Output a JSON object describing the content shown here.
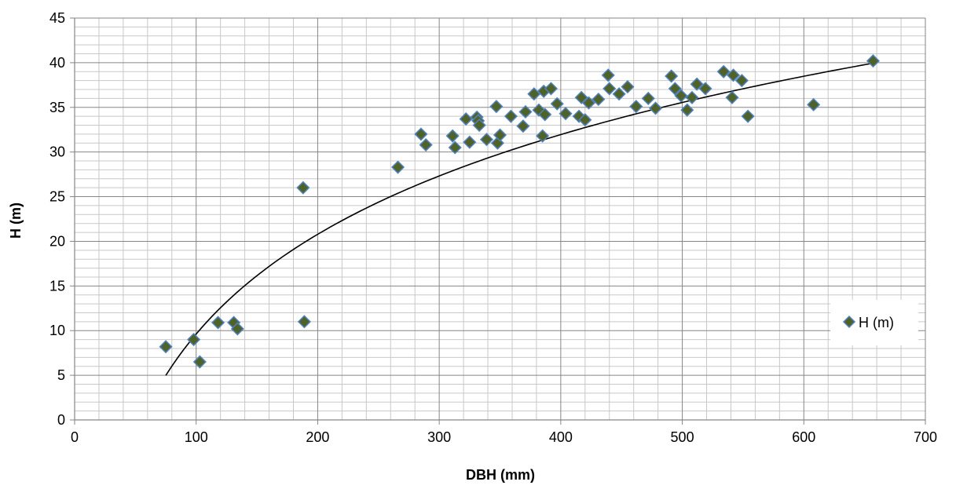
{
  "chart_data": {
    "type": "scatter",
    "xlabel": "DBH (mm)",
    "ylabel": "H (m)",
    "xlim": [
      0,
      700
    ],
    "ylim": [
      0,
      45
    ],
    "x_major_ticks": [
      0,
      100,
      200,
      300,
      400,
      500,
      600,
      700
    ],
    "y_major_ticks": [
      0,
      5,
      10,
      15,
      20,
      25,
      30,
      35,
      40,
      45
    ],
    "x_minor_step": 20,
    "y_minor_step": 1,
    "grid": true,
    "legend_position": "right",
    "colors": {
      "marker_fill": "#4f6228",
      "marker_stroke": "#4f81bd",
      "trendline": "#000000",
      "major_grid": "#868686",
      "minor_grid": "#c8c8c8"
    },
    "series": [
      {
        "name": "H (m)",
        "marker": "diamond",
        "points": [
          [
            75,
            8.2
          ],
          [
            98,
            9.0
          ],
          [
            103,
            6.5
          ],
          [
            118,
            10.9
          ],
          [
            131,
            10.9
          ],
          [
            134,
            10.2
          ],
          [
            188,
            26.0
          ],
          [
            189,
            11.0
          ],
          [
            266,
            28.3
          ],
          [
            285,
            32.0
          ],
          [
            289,
            30.8
          ],
          [
            311,
            31.8
          ],
          [
            313,
            30.5
          ],
          [
            322,
            33.7
          ],
          [
            325,
            31.1
          ],
          [
            331,
            33.9
          ],
          [
            332,
            33.5
          ],
          [
            333,
            33.0
          ],
          [
            339,
            31.4
          ],
          [
            347,
            35.1
          ],
          [
            348,
            31.0
          ],
          [
            350,
            31.9
          ],
          [
            359,
            34.0
          ],
          [
            369,
            32.9
          ],
          [
            371,
            34.5
          ],
          [
            378,
            36.5
          ],
          [
            382,
            34.7
          ],
          [
            385,
            31.8
          ],
          [
            386,
            36.8
          ],
          [
            387,
            34.2
          ],
          [
            392,
            37.1
          ],
          [
            397,
            35.4
          ],
          [
            404,
            34.3
          ],
          [
            415,
            34.0
          ],
          [
            417,
            36.1
          ],
          [
            420,
            33.6
          ],
          [
            423,
            35.5
          ],
          [
            431,
            35.9
          ],
          [
            439,
            38.6
          ],
          [
            440,
            37.1
          ],
          [
            448,
            36.5
          ],
          [
            455,
            37.3
          ],
          [
            462,
            35.1
          ],
          [
            472,
            36.0
          ],
          [
            478,
            34.9
          ],
          [
            491,
            38.5
          ],
          [
            494,
            37.1
          ],
          [
            499,
            36.3
          ],
          [
            504,
            34.7
          ],
          [
            508,
            36.1
          ],
          [
            512,
            37.6
          ],
          [
            519,
            37.1
          ],
          [
            534,
            39.0
          ],
          [
            541,
            36.1
          ],
          [
            542,
            38.6
          ],
          [
            549,
            38.0
          ],
          [
            554,
            34.0
          ],
          [
            608,
            35.3
          ],
          [
            657,
            40.2
          ]
        ]
      }
    ],
    "trendline": {
      "type": "logarithmic",
      "a": 16.11,
      "b": -64.57,
      "x_range": [
        75,
        657
      ]
    }
  }
}
